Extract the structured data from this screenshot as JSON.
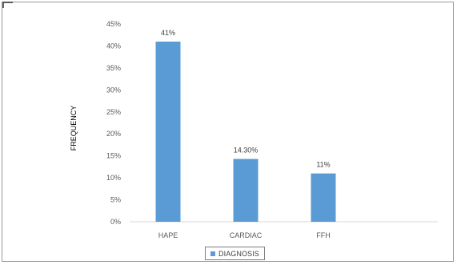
{
  "chart_data": {
    "type": "bar",
    "categories": [
      "HAPE",
      "CARDIAC",
      "FFH"
    ],
    "series": [
      {
        "name": "DIAGNOSIS",
        "values": [
          41,
          14.3,
          11
        ],
        "labels": [
          "41%",
          "14.30%",
          "11%"
        ]
      }
    ],
    "ylabel": "FREQUENCY",
    "xlabel": "",
    "yticks": [
      "0%",
      "5%",
      "10%",
      "15%",
      "20%",
      "25%",
      "30%",
      "35%",
      "40%",
      "45%"
    ],
    "ylim": [
      0,
      45
    ],
    "bar_color": "#5b9bd5",
    "gridlines": false,
    "legend_position": "bottom"
  }
}
